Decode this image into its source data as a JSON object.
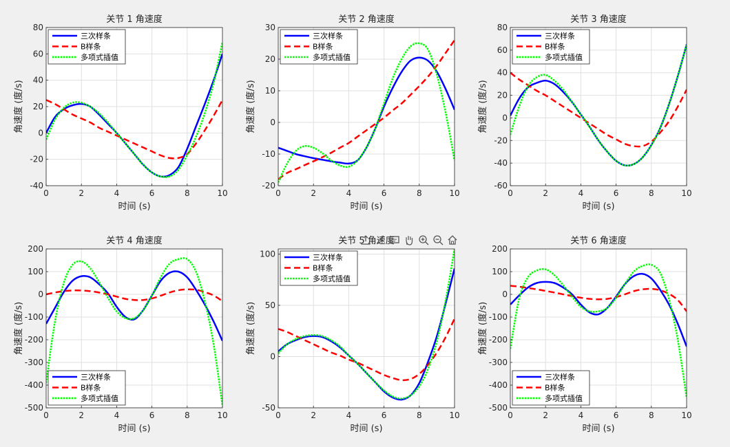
{
  "toolbar": {
    "icons": [
      "export-icon",
      "brush-icon",
      "datatip-icon",
      "pan-hand-icon",
      "zoom-in-icon",
      "zoom-out-icon",
      "home-icon"
    ]
  },
  "colors": {
    "cubic": "#0000ff",
    "bspline": "#ff0000",
    "poly": "#00ff00",
    "axes_bg": "#ffffff",
    "grid": "#dfdfdf"
  },
  "chart_data": [
    {
      "type": "line",
      "title": "关节 1 角速度",
      "xlabel": "时间 (s)",
      "ylabel": "角速度 (度/s)",
      "xlim": [
        0,
        10
      ],
      "ylim": [
        -40,
        80
      ],
      "xticks": [
        0,
        2,
        4,
        6,
        8,
        10
      ],
      "yticks": [
        -40,
        -20,
        0,
        20,
        40,
        60,
        80
      ],
      "legend_position": "top-left",
      "grid": true,
      "x": [
        0,
        0.5,
        1,
        1.5,
        2,
        2.5,
        3,
        3.5,
        4,
        4.5,
        5,
        5.5,
        6,
        6.5,
        7,
        7.5,
        8,
        8.5,
        9,
        9.5,
        10
      ],
      "series": [
        {
          "name": "三次样条",
          "style": "solid",
          "values": [
            0,
            12,
            18,
            21,
            22,
            20,
            14,
            7,
            0,
            -8,
            -16,
            -24,
            -30,
            -33,
            -32,
            -26,
            -12,
            5,
            22,
            40,
            60
          ]
        },
        {
          "name": "B样条",
          "style": "dashed",
          "values": [
            25,
            22,
            18,
            14,
            11,
            8,
            4,
            1,
            -2,
            -5,
            -8,
            -11,
            -14,
            -17,
            -19,
            -19,
            -16,
            -8,
            2,
            13,
            25
          ]
        },
        {
          "name": "多项式插值",
          "style": "dotted",
          "values": [
            -5,
            10,
            19,
            23,
            23,
            20,
            15,
            8,
            0,
            -8,
            -16,
            -24,
            -30,
            -33,
            -33,
            -28,
            -17,
            -3,
            15,
            38,
            69
          ]
        }
      ]
    },
    {
      "type": "line",
      "title": "关节 2 角速度",
      "xlabel": "时间 (s)",
      "ylabel": "角速度 (度/s)",
      "xlim": [
        0,
        10
      ],
      "ylim": [
        -20,
        30
      ],
      "xticks": [
        0,
        2,
        4,
        6,
        8,
        10
      ],
      "yticks": [
        -20,
        -10,
        0,
        10,
        20,
        30
      ],
      "legend_position": "top-left",
      "grid": true,
      "x": [
        0,
        0.5,
        1,
        1.5,
        2,
        2.5,
        3,
        3.5,
        4,
        4.5,
        5,
        5.5,
        6,
        6.5,
        7,
        7.5,
        8,
        8.5,
        9,
        9.5,
        10
      ],
      "series": [
        {
          "name": "三次样条",
          "style": "solid",
          "values": [
            -8,
            -9,
            -10,
            -10.7,
            -11.3,
            -11.8,
            -12.3,
            -12.7,
            -13,
            -12,
            -8,
            -2,
            5,
            11,
            16,
            19.5,
            20.5,
            19.5,
            16,
            10.5,
            4
          ]
        },
        {
          "name": "B样条",
          "style": "dashed",
          "values": [
            -18,
            -16,
            -14.8,
            -13.5,
            -12.3,
            -11,
            -9.6,
            -8,
            -6.5,
            -4.5,
            -2.5,
            -0.5,
            1.5,
            3.8,
            6,
            8.7,
            11.5,
            14.5,
            18,
            22,
            26
          ]
        },
        {
          "name": "多项式插值",
          "style": "dotted",
          "values": [
            -19,
            -13,
            -9,
            -7.5,
            -8,
            -9.7,
            -12,
            -13.6,
            -14,
            -12,
            -8,
            -2,
            6,
            14,
            20,
            24,
            25,
            23,
            15,
            3,
            -12
          ]
        }
      ]
    },
    {
      "type": "line",
      "title": "关节 3 角速度",
      "xlabel": "时间 (s)",
      "ylabel": "角速度 (度/s)",
      "xlim": [
        0,
        10
      ],
      "ylim": [
        -60,
        80
      ],
      "xticks": [
        0,
        2,
        4,
        6,
        8,
        10
      ],
      "yticks": [
        -60,
        -40,
        -20,
        0,
        20,
        40,
        60,
        80
      ],
      "legend_position": "top-left",
      "grid": true,
      "x": [
        0,
        0.5,
        1,
        1.5,
        2,
        2.5,
        3,
        3.5,
        4,
        4.5,
        5,
        5.5,
        6,
        6.5,
        7,
        7.5,
        8,
        8.5,
        9,
        9.5,
        10
      ],
      "series": [
        {
          "name": "三次样条",
          "style": "solid",
          "values": [
            2,
            17,
            27,
            31,
            33,
            30,
            23,
            14,
            3,
            -8,
            -20,
            -30,
            -38,
            -42,
            -41,
            -35,
            -24,
            -9,
            12,
            37,
            65
          ]
        },
        {
          "name": "B样条",
          "style": "dashed",
          "values": [
            40,
            34,
            29,
            24,
            20,
            15,
            10,
            5,
            0,
            -5,
            -10,
            -15,
            -19,
            -23,
            -25,
            -25,
            -21,
            -13,
            -3,
            10,
            25
          ]
        },
        {
          "name": "多项式插值",
          "style": "dotted",
          "values": [
            -15,
            10,
            28,
            36,
            38,
            33,
            25,
            14,
            3,
            -8,
            -20,
            -30,
            -38,
            -42,
            -41,
            -35,
            -24,
            -9,
            12,
            37,
            65
          ]
        }
      ]
    },
    {
      "type": "line",
      "title": "关节 4 角速度",
      "xlabel": "时间 (s)",
      "ylabel": "角速度 (度/s)",
      "xlim": [
        0,
        10
      ],
      "ylim": [
        -500,
        200
      ],
      "xticks": [
        0,
        2,
        4,
        6,
        8,
        10
      ],
      "yticks": [
        -500,
        -400,
        -300,
        -200,
        -100,
        0,
        100,
        200
      ],
      "legend_position": "bottom-left",
      "grid": true,
      "x": [
        0,
        0.5,
        1,
        1.5,
        2,
        2.5,
        3,
        3.5,
        4,
        4.5,
        5,
        5.5,
        6,
        6.5,
        7,
        7.5,
        8,
        8.5,
        9,
        9.5,
        10
      ],
      "series": [
        {
          "name": "三次样条",
          "style": "solid",
          "values": [
            -130,
            -60,
            10,
            60,
            80,
            75,
            45,
            5,
            -55,
            -100,
            -110,
            -70,
            -5,
            60,
            95,
            100,
            75,
            20,
            -45,
            -120,
            -205
          ]
        },
        {
          "name": "B样条",
          "style": "dashed",
          "values": [
            0,
            8,
            14,
            17,
            17,
            14,
            8,
            0,
            -10,
            -20,
            -25,
            -25,
            -18,
            -6,
            8,
            18,
            22,
            20,
            10,
            -5,
            -30
          ]
        },
        {
          "name": "多项式插值",
          "style": "dotted",
          "values": [
            -390,
            -120,
            50,
            130,
            145,
            115,
            55,
            -15,
            -75,
            -105,
            -105,
            -70,
            -5,
            75,
            135,
            155,
            155,
            100,
            -30,
            -220,
            -490
          ]
        }
      ]
    },
    {
      "type": "line",
      "title": "关节 5 角速度",
      "xlabel": "时间 (s)",
      "ylabel": "角速度 (度/s)",
      "xlim": [
        0,
        10
      ],
      "ylim": [
        -50,
        105
      ],
      "xticks": [
        0,
        2,
        4,
        6,
        8,
        10
      ],
      "yticks": [
        -50,
        0,
        50,
        100
      ],
      "legend_position": "top-left",
      "grid": true,
      "x": [
        0,
        0.5,
        1,
        1.5,
        2,
        2.5,
        3,
        3.5,
        4,
        4.5,
        5,
        5.5,
        6,
        6.5,
        7,
        7.5,
        8,
        8.5,
        9,
        9.5,
        10
      ],
      "series": [
        {
          "name": "三次样条",
          "style": "solid",
          "values": [
            5,
            12,
            16,
            19,
            20,
            19,
            15,
            9,
            1,
            -7,
            -16,
            -25,
            -34,
            -40,
            -42,
            -38,
            -26,
            -5,
            20,
            52,
            86
          ]
        },
        {
          "name": "B样条",
          "style": "dashed",
          "values": [
            27,
            24,
            20,
            16,
            12,
            8,
            4,
            1,
            -3,
            -6,
            -10,
            -14,
            -18,
            -21,
            -23,
            -22,
            -17,
            -8,
            4,
            19,
            37
          ]
        },
        {
          "name": "多项式插值",
          "style": "dotted",
          "values": [
            3,
            12,
            17,
            20,
            21,
            20,
            16,
            10,
            1,
            -7,
            -16,
            -25,
            -33,
            -39,
            -41,
            -38,
            -29,
            -12,
            15,
            55,
            105
          ]
        }
      ]
    },
    {
      "type": "line",
      "title": "关节 6 角速度",
      "xlabel": "时间 (s)",
      "ylabel": "角速度 (度/s)",
      "xlim": [
        0,
        10
      ],
      "ylim": [
        -500,
        200
      ],
      "xticks": [
        0,
        2,
        4,
        6,
        8,
        10
      ],
      "yticks": [
        -500,
        -400,
        -300,
        -200,
        -100,
        0,
        100,
        200
      ],
      "legend_position": "bottom-left",
      "grid": true,
      "x": [
        0,
        0.5,
        1,
        1.5,
        2,
        2.5,
        3,
        3.5,
        4,
        4.5,
        5,
        5.5,
        6,
        6.5,
        7,
        7.5,
        8,
        8.5,
        9,
        9.5,
        10
      ],
      "series": [
        {
          "name": "三次样条",
          "style": "solid",
          "values": [
            -45,
            -5,
            30,
            50,
            55,
            50,
            30,
            0,
            -45,
            -80,
            -88,
            -60,
            -10,
            45,
            80,
            90,
            70,
            20,
            -45,
            -130,
            -230
          ]
        },
        {
          "name": "B样条",
          "style": "dashed",
          "values": [
            38,
            34,
            28,
            22,
            15,
            8,
            0,
            -8,
            -15,
            -20,
            -22,
            -20,
            -12,
            0,
            14,
            22,
            24,
            18,
            2,
            -25,
            -75
          ]
        },
        {
          "name": "多项式插值",
          "style": "dotted",
          "values": [
            -240,
            -20,
            75,
            105,
            110,
            85,
            40,
            -10,
            -55,
            -75,
            -75,
            -60,
            -15,
            45,
            100,
            125,
            130,
            95,
            -20,
            -200,
            -455
          ]
        }
      ]
    }
  ]
}
